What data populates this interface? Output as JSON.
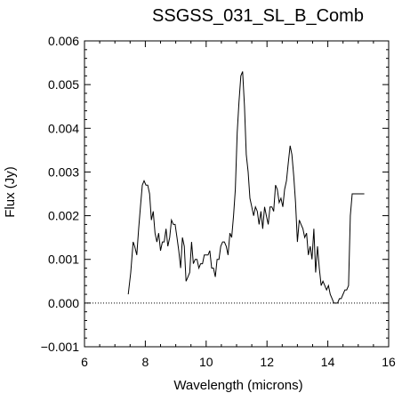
{
  "chart_data": {
    "type": "line",
    "title": "SSGSS_031_SL_B_Comb",
    "xlabel": "Wavelength (microns)",
    "ylabel": "Flux (Jy)",
    "xlim": [
      6,
      16
    ],
    "ylim": [
      -0.001,
      0.006
    ],
    "x_ticks": [
      "6",
      "8",
      "10",
      "12",
      "14",
      "16"
    ],
    "y_ticks": [
      "−0.001",
      "0.000",
      "0.001",
      "0.002",
      "0.003",
      "0.004",
      "0.005",
      "0.006"
    ],
    "reference_line": {
      "y": 0.0,
      "style": "dotted"
    },
    "series": [
      {
        "x": [
          7.44,
          7.52,
          7.6,
          7.65,
          7.72,
          7.78,
          7.84,
          7.9,
          7.96,
          8.02,
          8.08,
          8.14,
          8.2,
          8.26,
          8.32,
          8.38,
          8.44,
          8.5,
          8.56,
          8.62,
          8.68,
          8.74,
          8.8,
          8.86,
          8.92,
          8.98,
          9.04,
          9.1,
          9.16,
          9.22,
          9.28,
          9.34,
          9.4,
          9.46,
          9.52,
          9.58,
          9.64,
          9.7,
          9.76,
          9.82,
          9.88,
          9.94,
          10.0,
          10.06,
          10.12,
          10.18,
          10.24,
          10.3,
          10.36,
          10.42,
          10.48,
          10.54,
          10.6,
          10.66,
          10.72,
          10.78,
          10.84,
          10.9,
          10.96,
          11.02,
          11.08,
          11.14,
          11.2,
          11.26,
          11.32,
          11.38,
          11.44,
          11.5,
          11.56,
          11.62,
          11.68,
          11.74,
          11.8,
          11.86,
          11.92,
          11.98,
          12.04,
          12.1,
          12.16,
          12.22,
          12.28,
          12.34,
          12.4,
          12.46,
          12.52,
          12.58,
          12.64,
          12.7,
          12.76,
          12.82,
          12.88,
          12.94,
          13.0,
          13.06,
          13.12,
          13.18,
          13.24,
          13.3,
          13.36,
          13.42,
          13.48,
          13.54,
          13.6,
          13.66,
          13.72,
          13.78,
          13.84,
          13.9,
          13.96,
          14.02,
          14.08,
          14.14,
          14.2,
          14.26,
          14.32,
          14.38,
          14.44,
          14.5,
          14.56,
          14.62,
          14.68,
          14.74,
          14.8,
          14.86,
          14.92,
          14.98,
          15.04,
          15.1,
          15.16,
          15.2
        ],
        "values": [
          0.0002,
          0.0007,
          0.0014,
          0.0013,
          0.0011,
          0.0017,
          0.0022,
          0.0027,
          0.0028,
          0.0027,
          0.0027,
          0.0025,
          0.0019,
          0.0021,
          0.0016,
          0.0014,
          0.0016,
          0.0012,
          0.0014,
          0.0014,
          0.0017,
          0.0013,
          0.0015,
          0.0019,
          0.0018,
          0.0018,
          0.0015,
          0.0012,
          0.0008,
          0.0015,
          0.0013,
          0.0005,
          0.0006,
          0.0007,
          0.0014,
          0.0009,
          0.001,
          0.001,
          0.0008,
          0.0009,
          0.0009,
          0.0011,
          0.0011,
          0.0011,
          0.0012,
          0.0008,
          0.0008,
          0.0006,
          0.001,
          0.001,
          0.0013,
          0.0014,
          0.0014,
          0.0013,
          0.0011,
          0.0016,
          0.0015,
          0.002,
          0.0026,
          0.0039,
          0.0046,
          0.0052,
          0.0053,
          0.0045,
          0.0034,
          0.003,
          0.0024,
          0.0022,
          0.002,
          0.0022,
          0.0021,
          0.0018,
          0.0021,
          0.0017,
          0.0022,
          0.002,
          0.0018,
          0.0022,
          0.0022,
          0.0021,
          0.0027,
          0.0026,
          0.0023,
          0.0024,
          0.0022,
          0.0026,
          0.0028,
          0.0032,
          0.0036,
          0.0034,
          0.0029,
          0.0023,
          0.0014,
          0.0019,
          0.0018,
          0.0017,
          0.0015,
          0.0016,
          0.0011,
          0.0013,
          0.001,
          0.0017,
          0.0007,
          0.0013,
          0.0008,
          0.0004,
          0.0005,
          0.0004,
          0.0003,
          0.0004,
          0.0002,
          0.0001,
          0.0,
          0.0,
          0.0,
          0.0001,
          0.0001,
          0.0002,
          0.0003,
          0.0003,
          0.0004,
          0.002,
          0.0025,
          0.0025,
          0.0025,
          0.0025,
          0.0025,
          0.0025,
          0.0025,
          0.0025
        ]
      }
    ]
  }
}
